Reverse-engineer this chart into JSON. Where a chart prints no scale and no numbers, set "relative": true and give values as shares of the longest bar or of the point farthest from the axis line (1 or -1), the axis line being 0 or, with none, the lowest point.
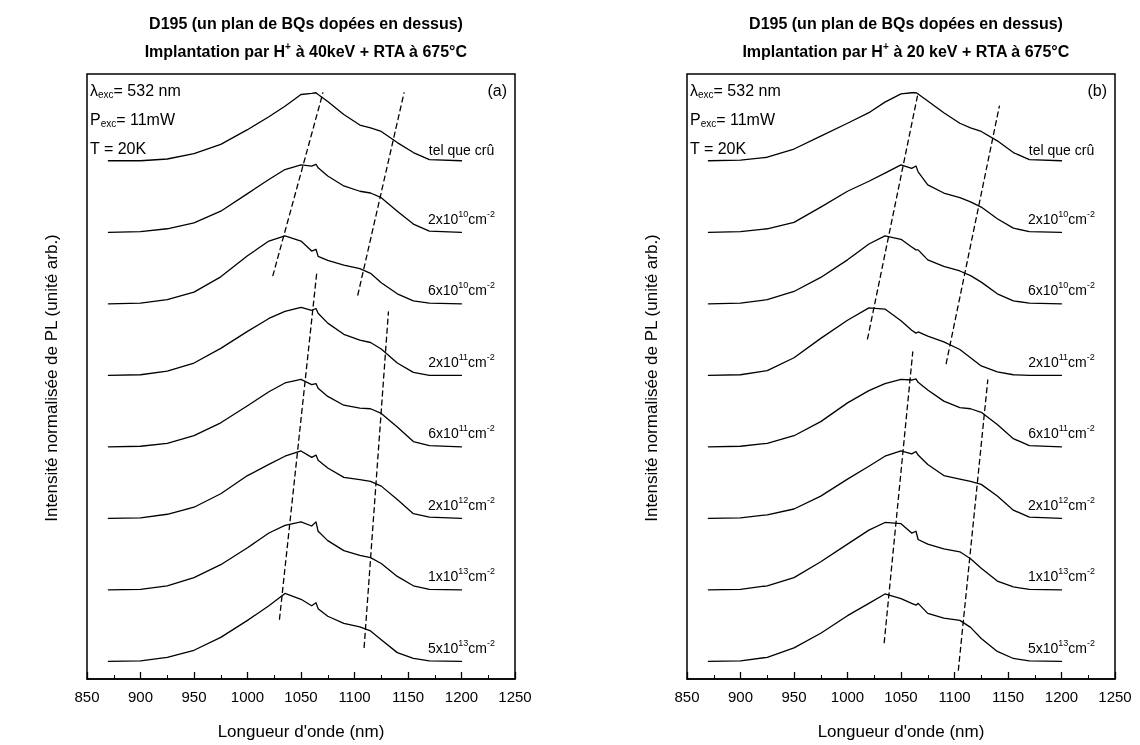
{
  "chart_data": [
    {
      "type": "line",
      "title": "D195 (un plan de BQs dopées en dessus)",
      "subtitle": "Implantation par H$^{+}$ à 40keV + RTA à 675°C",
      "xlabel": "Longueur d'onde (nm)",
      "ylabel": "Intensité normalisée de PL (unité arb.)",
      "annotations": [
        "λ$_{exc}$= 532 nm",
        "P$_{exc}$= 11mW",
        "T = 20K",
        "(a)"
      ],
      "relative": true,
      "marker": "none",
      "line_style": "solid",
      "tick_labels": "x",
      "xlim": [
        850,
        1250
      ],
      "xticks": [
        850,
        900,
        950,
        1000,
        1050,
        1100,
        1150,
        1200,
        1250
      ],
      "x": [
        870,
        900,
        925,
        950,
        975,
        1000,
        1020,
        1035,
        1050,
        1060,
        1064,
        1066,
        1075,
        1090,
        1105,
        1115,
        1125,
        1140,
        1155,
        1170,
        1200
      ],
      "series": [
        {
          "name": "tel que crû",
          "color": "#000000",
          "values": [
            0.884,
            0.884,
            0.887,
            0.896,
            0.912,
            0.937,
            0.959,
            0.977,
            0.997,
            0.999,
            1.0,
            0.997,
            0.985,
            0.963,
            0.945,
            0.94,
            0.934,
            0.915,
            0.898,
            0.886,
            0.884
          ]
        },
        {
          "name": "2x10$^{10}$cm$^{-2}$",
          "color": "#000000",
          "values": [
            0.762,
            0.763,
            0.768,
            0.778,
            0.798,
            0.828,
            0.852,
            0.869,
            0.877,
            0.875,
            0.878,
            0.872,
            0.858,
            0.841,
            0.832,
            0.829,
            0.821,
            0.798,
            0.776,
            0.764,
            0.762
          ]
        },
        {
          "name": "6x10$^{10}$cm$^{-2}$",
          "color": "#000000",
          "values": [
            0.64,
            0.641,
            0.647,
            0.66,
            0.686,
            0.722,
            0.747,
            0.756,
            0.747,
            0.73,
            0.733,
            0.721,
            0.714,
            0.706,
            0.7,
            0.692,
            0.676,
            0.657,
            0.645,
            0.641,
            0.64
          ]
        },
        {
          "name": "2x10$^{11}$cm$^{-2}$",
          "color": "#000000",
          "values": [
            0.518,
            0.519,
            0.525,
            0.539,
            0.564,
            0.593,
            0.615,
            0.627,
            0.634,
            0.629,
            0.632,
            0.624,
            0.607,
            0.588,
            0.578,
            0.574,
            0.563,
            0.539,
            0.523,
            0.518,
            0.518
          ]
        },
        {
          "name": "6x10$^{11}$cm$^{-2}$",
          "color": "#000000",
          "values": [
            0.396,
            0.397,
            0.402,
            0.415,
            0.437,
            0.466,
            0.49,
            0.505,
            0.511,
            0.502,
            0.504,
            0.496,
            0.482,
            0.467,
            0.462,
            0.461,
            0.453,
            0.43,
            0.405,
            0.398,
            0.396
          ]
        },
        {
          "name": "2x10$^{12}$cm$^{-2}$",
          "color": "#000000",
          "values": [
            0.274,
            0.275,
            0.281,
            0.293,
            0.316,
            0.347,
            0.366,
            0.38,
            0.389,
            0.378,
            0.382,
            0.373,
            0.36,
            0.344,
            0.34,
            0.337,
            0.329,
            0.306,
            0.282,
            0.276,
            0.274
          ]
        },
        {
          "name": "1x10$^{13}$cm$^{-2}$",
          "color": "#000000",
          "values": [
            0.152,
            0.153,
            0.159,
            0.173,
            0.195,
            0.224,
            0.249,
            0.262,
            0.268,
            0.261,
            0.268,
            0.252,
            0.236,
            0.219,
            0.211,
            0.207,
            0.197,
            0.175,
            0.159,
            0.153,
            0.152
          ]
        },
        {
          "name": "5x10$^{13}$cm$^{-2}$",
          "color": "#000000",
          "values": [
            0.03,
            0.031,
            0.037,
            0.049,
            0.071,
            0.1,
            0.125,
            0.146,
            0.136,
            0.125,
            0.13,
            0.12,
            0.107,
            0.095,
            0.089,
            0.082,
            0.067,
            0.045,
            0.035,
            0.031,
            0.03
          ]
        },
        {
          "type": "line",
          "line_style": "dashed",
          "color": "#000000",
          "x": [
            1023.7,
            1070.5
          ],
          "values": [
            0.688,
            1.0
          ]
        },
        {
          "type": "line",
          "line_style": "dashed",
          "color": "#000000",
          "x": [
            1103.1,
            1146.3
          ],
          "values": [
            0.655,
            1.0
          ]
        },
        {
          "type": "line",
          "line_style": "dashed",
          "color": "#000000",
          "x": [
            1029.9,
            1064.8
          ],
          "values": [
            0.102,
            0.694
          ]
        },
        {
          "type": "line",
          "line_style": "dashed",
          "color": "#000000",
          "x": [
            1109.0,
            1131.7
          ],
          "values": [
            0.054,
            0.626
          ]
        }
      ]
    },
    {
      "type": "line",
      "title": "D195 (un plan de BQs dopées en dessus)",
      "subtitle": "Implantation par H$^{+}$ à 20 keV + RTA à 675°C",
      "xlabel": "Longueur d'onde (nm)",
      "ylabel": "Intensité normalisée de PL (unité arb.)",
      "annotations": [
        "λ$_{exc}$= 532 nm",
        "P$_{exc}$= 11mW",
        "T = 20K",
        "(b)"
      ],
      "relative": true,
      "marker": "none",
      "line_style": "solid",
      "tick_labels": "x",
      "xlim": [
        850,
        1250
      ],
      "xticks": [
        850,
        900,
        950,
        1000,
        1050,
        1100,
        1150,
        1200,
        1250
      ],
      "x": [
        870,
        900,
        925,
        950,
        975,
        1000,
        1020,
        1035,
        1050,
        1060,
        1064,
        1066,
        1075,
        1090,
        1105,
        1115,
        1125,
        1140,
        1155,
        1170,
        1200
      ],
      "series": [
        {
          "name": "tel que crû",
          "color": "#000000",
          "values": [
            0.884,
            0.885,
            0.89,
            0.904,
            0.926,
            0.948,
            0.966,
            0.984,
            0.998,
            1.0,
            1.0,
            0.998,
            0.986,
            0.966,
            0.948,
            0.94,
            0.934,
            0.918,
            0.898,
            0.886,
            0.884
          ]
        },
        {
          "name": "2x10$^{10}$cm$^{-2}$",
          "color": "#000000",
          "values": [
            0.762,
            0.763,
            0.768,
            0.779,
            0.805,
            0.832,
            0.849,
            0.863,
            0.877,
            0.871,
            0.875,
            0.865,
            0.843,
            0.829,
            0.821,
            0.814,
            0.805,
            0.785,
            0.769,
            0.763,
            0.762
          ]
        },
        {
          "name": "6x10$^{10}$cm$^{-2}$",
          "color": "#000000",
          "values": [
            0.64,
            0.641,
            0.647,
            0.661,
            0.685,
            0.715,
            0.742,
            0.756,
            0.75,
            0.737,
            0.732,
            0.732,
            0.715,
            0.704,
            0.696,
            0.688,
            0.677,
            0.657,
            0.645,
            0.641,
            0.64
          ]
        },
        {
          "name": "2x10$^{11}$cm$^{-2}$",
          "color": "#000000",
          "values": [
            0.518,
            0.519,
            0.526,
            0.548,
            0.581,
            0.612,
            0.633,
            0.631,
            0.611,
            0.595,
            0.59,
            0.592,
            0.585,
            0.575,
            0.562,
            0.548,
            0.534,
            0.524,
            0.519,
            0.518,
            0.518
          ]
        },
        {
          "name": "6x10$^{11}$cm$^{-2}$",
          "color": "#000000",
          "values": [
            0.396,
            0.397,
            0.402,
            0.415,
            0.439,
            0.471,
            0.492,
            0.504,
            0.511,
            0.51,
            0.512,
            0.506,
            0.493,
            0.474,
            0.463,
            0.461,
            0.455,
            0.434,
            0.41,
            0.398,
            0.396
          ]
        },
        {
          "name": "2x10$^{12}$cm$^{-2}$",
          "color": "#000000",
          "values": [
            0.274,
            0.275,
            0.28,
            0.29,
            0.312,
            0.341,
            0.363,
            0.38,
            0.389,
            0.384,
            0.388,
            0.382,
            0.366,
            0.347,
            0.341,
            0.337,
            0.332,
            0.312,
            0.288,
            0.276,
            0.274
          ]
        },
        {
          "name": "1x10$^{13}$cm$^{-2}$",
          "color": "#000000",
          "values": [
            0.152,
            0.153,
            0.159,
            0.173,
            0.2,
            0.23,
            0.254,
            0.267,
            0.265,
            0.249,
            0.252,
            0.238,
            0.23,
            0.222,
            0.217,
            0.205,
            0.189,
            0.167,
            0.157,
            0.153,
            0.152
          ]
        },
        {
          "name": "5x10$^{13}$cm$^{-2}$",
          "color": "#000000",
          "values": [
            0.03,
            0.031,
            0.037,
            0.053,
            0.078,
            0.108,
            0.129,
            0.145,
            0.137,
            0.129,
            0.126,
            0.129,
            0.112,
            0.104,
            0.1,
            0.088,
            0.069,
            0.047,
            0.035,
            0.031,
            0.03
          ]
        },
        {
          "type": "line",
          "line_style": "dashed",
          "color": "#000000",
          "x": [
            1018.7,
            1066.0
          ],
          "values": [
            0.58,
            1.0
          ]
        },
        {
          "type": "line",
          "line_style": "dashed",
          "color": "#000000",
          "x": [
            1092.2,
            1141.9
          ],
          "values": [
            0.538,
            0.977
          ]
        },
        {
          "type": "line",
          "line_style": "dashed",
          "color": "#000000",
          "x": [
            1034.3,
            1061.0
          ],
          "values": [
            0.062,
            0.558
          ]
        },
        {
          "type": "line",
          "line_style": "dashed",
          "color": "#000000",
          "x": [
            1103.6,
            1131.1
          ],
          "values": [
            0.015,
            0.51
          ]
        }
      ]
    }
  ]
}
